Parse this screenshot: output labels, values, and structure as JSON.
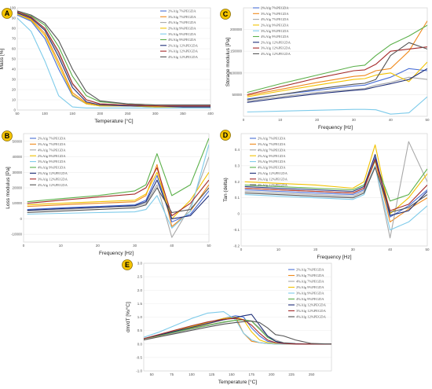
{
  "chart_data": [
    {
      "panel": "A",
      "type": "line",
      "xlabel": "Temperature [°C]",
      "ylabel": "Mass [%]",
      "xlim": [
        50,
        400
      ],
      "ylim": [
        0,
        100
      ],
      "xticks": [
        50,
        100,
        150,
        200,
        250,
        300,
        350,
        400
      ],
      "yticks": [
        0,
        10,
        20,
        30,
        40,
        50,
        60,
        70,
        80,
        90,
        100
      ],
      "x": [
        50,
        75,
        100,
        125,
        150,
        175,
        200,
        250,
        300,
        350,
        400
      ],
      "series": [
        {
          "name": "2%Alg 7%PEGDA",
          "color": "#4a6fd6",
          "values": [
            93,
            87,
            70,
            40,
            14,
            6,
            4,
            4,
            3,
            3,
            3
          ]
        },
        {
          "name": "3%Alg 7%PEGDA",
          "color": "#f08a1c",
          "values": [
            94,
            89,
            75,
            47,
            17,
            7,
            5,
            4,
            4,
            3,
            3
          ]
        },
        {
          "name": "4%Alg 7%PEGDA",
          "color": "#a8a8a8",
          "values": [
            95,
            90,
            79,
            55,
            25,
            10,
            6,
            5,
            4,
            4,
            4
          ]
        },
        {
          "name": "2%Alg 9%PEGDA",
          "color": "#f2c200",
          "values": [
            94,
            88,
            73,
            44,
            15,
            6,
            4,
            4,
            3,
            3,
            3
          ]
        },
        {
          "name": "3%Alg 9%PEGDA",
          "color": "#7ecbea",
          "values": [
            90,
            77,
            48,
            14,
            3,
            2,
            2,
            2,
            2,
            2,
            2
          ]
        },
        {
          "name": "4%Alg 9%PEGDA",
          "color": "#5bb04a",
          "values": [
            96,
            92,
            83,
            62,
            33,
            14,
            8,
            6,
            5,
            5,
            5
          ]
        },
        {
          "name": "2%Alg 12%PEGDA",
          "color": "#1f2f78",
          "values": [
            95,
            90,
            78,
            52,
            22,
            8,
            5,
            4,
            4,
            3,
            3
          ]
        },
        {
          "name": "3%Alg 12%PEGDA",
          "color": "#a52a2a",
          "values": [
            96,
            91,
            80,
            57,
            26,
            10,
            6,
            5,
            4,
            4,
            4
          ]
        },
        {
          "name": "4%Alg 12%PEGDA",
          "color": "#555555",
          "values": [
            97,
            93,
            85,
            68,
            40,
            18,
            9,
            6,
            5,
            5,
            5
          ]
        }
      ]
    },
    {
      "panel": "C",
      "type": "line",
      "xlabel": "Frequency [Hz]",
      "ylabel": "Storage modulus [Pa]",
      "xlim": [
        0,
        50
      ],
      "ylim": [
        0,
        250000
      ],
      "xticks": [
        0,
        10,
        20,
        30,
        40,
        50
      ],
      "yticks": [
        50000,
        100000,
        150000,
        200000
      ],
      "x": [
        1,
        10,
        20,
        30,
        33,
        36,
        40,
        45,
        50
      ],
      "series": [
        {
          "name": "2%Alg 7%PEGDA",
          "color": "#4a6fd6",
          "values": [
            40000,
            50000,
            60000,
            70000,
            72000,
            80000,
            90000,
            110000,
            105000
          ]
        },
        {
          "name": "3%Alg 7%PEGDA",
          "color": "#f08a1c",
          "values": [
            48000,
            62000,
            78000,
            92000,
            94000,
            105000,
            110000,
            150000,
            220000
          ]
        },
        {
          "name": "4%Alg 7%PEGDA",
          "color": "#a8a8a8",
          "values": [
            35000,
            45000,
            55000,
            62000,
            64000,
            72000,
            78000,
            90000,
            85000
          ]
        },
        {
          "name": "2%Alg 9%PEGDA",
          "color": "#f2c200",
          "values": [
            45000,
            58000,
            72000,
            85000,
            87000,
            95000,
            100000,
            80000,
            125000
          ]
        },
        {
          "name": "3%Alg 9%PEGDA",
          "color": "#7ecbea",
          "values": [
            10000,
            12000,
            14000,
            16000,
            16000,
            15000,
            5000,
            8000,
            45000
          ]
        },
        {
          "name": "4%Alg 9%PEGDA",
          "color": "#5bb04a",
          "values": [
            55000,
            75000,
            95000,
            115000,
            118000,
            140000,
            165000,
            185000,
            210000
          ]
        },
        {
          "name": "2%Alg 12%PEGDA",
          "color": "#1f2f78",
          "values": [
            32000,
            42000,
            52000,
            60000,
            62000,
            68000,
            75000,
            85000,
            110000
          ]
        },
        {
          "name": "3%Alg 12%PEGDA",
          "color": "#a52a2a",
          "values": [
            50000,
            68000,
            88000,
            105000,
            107000,
            120000,
            150000,
            155000,
            160000
          ]
        },
        {
          "name": "4%Alg 12%PEGDA",
          "color": "#555555",
          "values": [
            38000,
            50000,
            63000,
            74000,
            76000,
            85000,
            140000,
            170000,
            155000
          ]
        }
      ]
    },
    {
      "panel": "B",
      "type": "line",
      "xlabel": "Frequency [Hz]",
      "ylabel": "Loss modulus [Pa]",
      "xlim": [
        0,
        50
      ],
      "ylim": [
        -15000,
        55000
      ],
      "xticks": [
        0,
        10,
        20,
        30,
        40,
        50
      ],
      "yticks": [
        -10000,
        0,
        10000,
        20000,
        30000,
        40000,
        50000
      ],
      "x": [
        1,
        10,
        20,
        30,
        33,
        36,
        40,
        45,
        50
      ],
      "series": [
        {
          "name": "2%Alg 7%PEGDA",
          "color": "#4a6fd6",
          "values": [
            6000,
            7000,
            8000,
            9000,
            12000,
            28000,
            -2000,
            3000,
            18000
          ]
        },
        {
          "name": "3%Alg 7%PEGDA",
          "color": "#f08a1c",
          "values": [
            8000,
            9000,
            10000,
            11000,
            15000,
            35000,
            -5000,
            5000,
            22000
          ]
        },
        {
          "name": "4%Alg 7%PEGDA",
          "color": "#a8a8a8",
          "values": [
            5000,
            6000,
            7000,
            8000,
            10000,
            22000,
            -12000,
            8000,
            40000
          ]
        },
        {
          "name": "2%Alg 9%PEGDA",
          "color": "#f2c200",
          "values": [
            9000,
            10000,
            11000,
            12000,
            16000,
            30000,
            0,
            12000,
            30000
          ]
        },
        {
          "name": "3%Alg 9%PEGDA",
          "color": "#7ecbea",
          "values": [
            3000,
            3500,
            4000,
            4500,
            6000,
            15000,
            -6000,
            5000,
            48000
          ]
        },
        {
          "name": "4%Alg 9%PEGDA",
          "color": "#5bb04a",
          "values": [
            11000,
            13000,
            15000,
            18000,
            22000,
            42000,
            15000,
            22000,
            52000
          ]
        },
        {
          "name": "2%Alg 12%PEGDA",
          "color": "#1f2f78",
          "values": [
            5500,
            6500,
            7500,
            8500,
            11000,
            25000,
            0,
            2000,
            15000
          ]
        },
        {
          "name": "3%Alg 12%PEGDA",
          "color": "#a52a2a",
          "values": [
            10000,
            12000,
            14000,
            16000,
            20000,
            33000,
            2000,
            10000,
            25000
          ]
        },
        {
          "name": "4%Alg 12%PEGDA",
          "color": "#555555",
          "values": [
            4000,
            5000,
            6000,
            7000,
            9000,
            20000,
            4000,
            6000,
            20000
          ]
        }
      ]
    },
    {
      "panel": "D",
      "type": "line",
      "xlabel": "Frequency [Hz]",
      "ylabel": "Tan (delta)",
      "xlim": [
        0,
        50
      ],
      "ylim": [
        -0.2,
        0.5
      ],
      "xticks": [
        0,
        10,
        20,
        30,
        40,
        50
      ],
      "yticks": [
        -0.2,
        -0.1,
        0,
        0.1,
        0.2,
        0.3,
        0.4
      ],
      "x": [
        1,
        10,
        20,
        30,
        33,
        36,
        40,
        45,
        50
      ],
      "series": [
        {
          "name": "2%Alg 7%PEGDA",
          "color": "#4a6fd6",
          "values": [
            0.15,
            0.14,
            0.13,
            0.12,
            0.15,
            0.35,
            -0.02,
            0.05,
            0.15
          ]
        },
        {
          "name": "3%Alg 7%PEGDA",
          "color": "#f08a1c",
          "values": [
            0.16,
            0.15,
            0.14,
            0.13,
            0.16,
            0.33,
            -0.05,
            0.03,
            0.1
          ]
        },
        {
          "name": "4%Alg 7%PEGDA",
          "color": "#a8a8a8",
          "values": [
            0.14,
            0.13,
            0.12,
            0.11,
            0.14,
            0.3,
            -0.15,
            0.45,
            0.2
          ]
        },
        {
          "name": "2%Alg 9%PEGDA",
          "color": "#f2c200",
          "values": [
            0.2,
            0.19,
            0.18,
            0.16,
            0.2,
            0.43,
            0.0,
            0.1,
            0.25
          ]
        },
        {
          "name": "3%Alg 9%PEGDA",
          "color": "#7ecbea",
          "values": [
            0.12,
            0.11,
            0.1,
            0.09,
            0.12,
            0.3,
            -0.1,
            -0.05,
            0.05
          ]
        },
        {
          "name": "4%Alg 9%PEGDA",
          "color": "#5bb04a",
          "values": [
            0.18,
            0.17,
            0.16,
            0.15,
            0.18,
            0.33,
            0.08,
            0.12,
            0.28
          ]
        },
        {
          "name": "2%Alg 12%PEGDA",
          "color": "#1f2f78",
          "values": [
            0.17,
            0.16,
            0.15,
            0.14,
            0.17,
            0.37,
            -0.01,
            0.02,
            0.14
          ]
        },
        {
          "name": "3%Alg 12%PEGDA",
          "color": "#a52a2a",
          "values": [
            0.16,
            0.15,
            0.14,
            0.13,
            0.16,
            0.34,
            0.02,
            0.06,
            0.18
          ]
        },
        {
          "name": "4%Alg 12%PEGDA",
          "color": "#555555",
          "values": [
            0.13,
            0.12,
            0.11,
            0.1,
            0.13,
            0.29,
            0.01,
            0.04,
            0.12
          ]
        }
      ]
    },
    {
      "panel": "E",
      "type": "line",
      "xlabel": "Temperature [°C]",
      "ylabel": "dm/dT [%/°C]",
      "xlim": [
        40,
        275
      ],
      "ylim": [
        -1.0,
        3.0
      ],
      "xticks": [
        50,
        75,
        100,
        125,
        150,
        175,
        200,
        225,
        250
      ],
      "yticks": [
        -1.0,
        -0.5,
        0.0,
        0.5,
        1.0,
        1.5,
        2.0,
        2.5,
        3.0
      ],
      "x": [
        40,
        60,
        80,
        100,
        120,
        140,
        155,
        165,
        175,
        185,
        195,
        205,
        215,
        230,
        250,
        275
      ],
      "series": [
        {
          "name": "2%Alg 7%PEGDA",
          "color": "#4a6fd6",
          "values": [
            0.2,
            0.35,
            0.5,
            0.65,
            0.8,
            0.95,
            1.05,
            1.0,
            0.6,
            0.3,
            0.1,
            0.05,
            0.02,
            0.0,
            0.0,
            0.0
          ]
        },
        {
          "name": "3%Alg 7%PEGDA",
          "color": "#f08a1c",
          "values": [
            0.15,
            0.3,
            0.45,
            0.6,
            0.75,
            0.9,
            1.0,
            0.4,
            0.1,
            0.05,
            0.02,
            0.0,
            0.0,
            0.0,
            0.0,
            0.0
          ]
        },
        {
          "name": "4%Alg 7%PEGDA",
          "color": "#a8a8a8",
          "values": [
            0.15,
            0.28,
            0.42,
            0.55,
            0.68,
            0.8,
            0.88,
            0.9,
            0.85,
            0.6,
            0.3,
            0.15,
            0.05,
            0.02,
            0.0,
            0.0
          ]
        },
        {
          "name": "2%Alg 9%PEGDA",
          "color": "#f2c200",
          "values": [
            0.2,
            0.35,
            0.5,
            0.65,
            0.8,
            0.95,
            1.0,
            0.9,
            0.45,
            0.15,
            0.05,
            0.02,
            0.0,
            0.0,
            0.0,
            0.0
          ]
        },
        {
          "name": "3%Alg 9%PEGDA",
          "color": "#7ecbea",
          "values": [
            0.25,
            0.45,
            0.7,
            0.95,
            1.15,
            1.2,
            0.9,
            0.4,
            0.15,
            0.05,
            0.02,
            0.0,
            0.0,
            0.0,
            0.0,
            0.0
          ]
        },
        {
          "name": "4%Alg 9%PEGDA",
          "color": "#5bb04a",
          "values": [
            0.2,
            0.32,
            0.45,
            0.58,
            0.7,
            0.82,
            0.88,
            0.9,
            0.85,
            0.55,
            0.25,
            0.1,
            0.04,
            0.01,
            0.0,
            0.0
          ]
        },
        {
          "name": "2%Alg 12%PEGDA",
          "color": "#1f2f78",
          "values": [
            0.2,
            0.34,
            0.48,
            0.62,
            0.76,
            0.9,
            0.98,
            1.05,
            1.1,
            0.7,
            0.3,
            0.1,
            0.03,
            0.01,
            0.0,
            0.0
          ]
        },
        {
          "name": "3%Alg 12%PEGDA",
          "color": "#a52a2a",
          "values": [
            0.2,
            0.36,
            0.52,
            0.68,
            0.82,
            0.92,
            0.95,
            0.9,
            0.7,
            0.4,
            0.15,
            0.05,
            0.02,
            0.0,
            0.0,
            0.0
          ]
        },
        {
          "name": "4%Alg 12%PEGDA",
          "color": "#555555",
          "values": [
            0.15,
            0.27,
            0.39,
            0.51,
            0.63,
            0.74,
            0.8,
            0.83,
            0.85,
            0.8,
            0.6,
            0.35,
            0.3,
            0.15,
            0.02,
            0.0
          ]
        }
      ]
    }
  ],
  "colors": {
    "badge_fill": "#f5c400",
    "axis": "#d8d8d8",
    "grid": "#ececec"
  }
}
